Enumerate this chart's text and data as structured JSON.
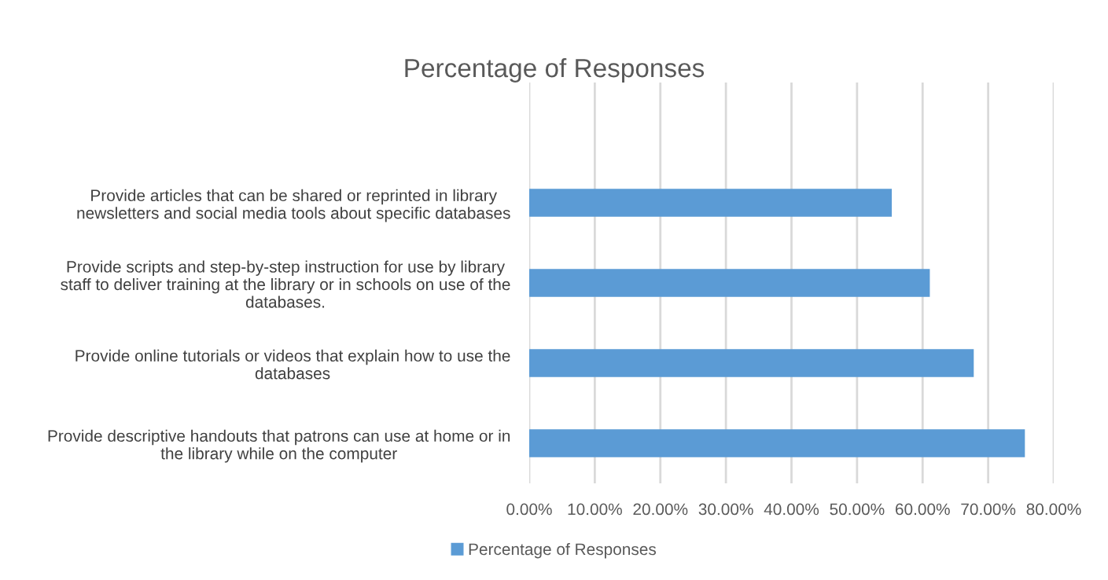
{
  "chart_data": {
    "type": "bar",
    "orientation": "horizontal",
    "title": "Percentage of Responses",
    "categories": [
      "Provide articles that can be shared or reprinted in library\nnewsletters and social media tools about specific databases",
      "Provide scripts and step-by-step instruction for use by library\nstaff to deliver training at the library or in schools on use of the\ndatabases.",
      "Provide online tutorials or videos that explain how to use the\ndatabases",
      "Provide descriptive handouts that patrons can use at home or in\nthe library while on the computer"
    ],
    "series": [
      {
        "name": "Percentage of Responses",
        "color": "#5b9bd5",
        "values": [
          55.3,
          61.1,
          67.8,
          75.6
        ]
      }
    ],
    "xlim": [
      0,
      80
    ],
    "xticks": [
      {
        "value": 0,
        "label": "0.00%"
      },
      {
        "value": 10,
        "label": "10.00%"
      },
      {
        "value": 20,
        "label": "20.00%"
      },
      {
        "value": 30,
        "label": "30.00%"
      },
      {
        "value": 40,
        "label": "40.00%"
      },
      {
        "value": 50,
        "label": "50.00%"
      },
      {
        "value": 60,
        "label": "60.00%"
      },
      {
        "value": 70,
        "label": "70.00%"
      },
      {
        "value": 80,
        "label": "80.00%"
      }
    ],
    "grid": "x",
    "legend": "bottom"
  }
}
